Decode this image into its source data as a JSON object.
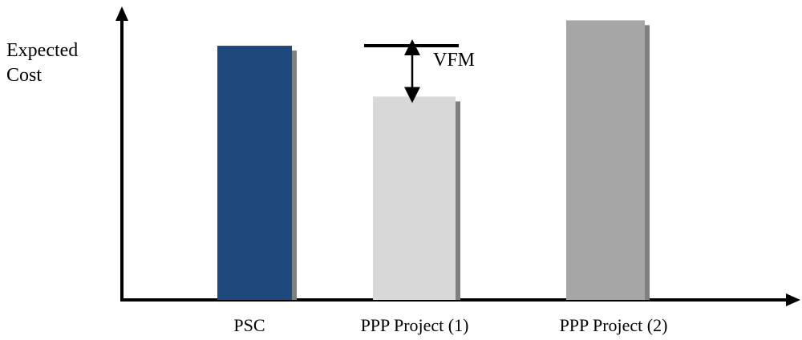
{
  "colors": {
    "axis": "#000000",
    "shadow": "#808080",
    "text": "#000000"
  },
  "icons": {
    "arrow": "double-headed-vertical-arrow"
  },
  "chart_data": {
    "type": "bar",
    "title": "",
    "ylabel_lines": [
      "Expected",
      "Cost"
    ],
    "xlabel": "",
    "grid": false,
    "ticks": false,
    "categories": [
      "PSC",
      "PPP Project (1)",
      "PPP Project (2)"
    ],
    "values": [
      100,
      80,
      110
    ],
    "ylim": [
      0,
      118
    ],
    "bar_colors": [
      "#1f497d",
      "#d8d8d8",
      "#a6a6a6"
    ],
    "annotation": {
      "label": "VFM",
      "reference_value": 100,
      "bar_value": 80,
      "category": "PPP Project (1)",
      "meaning": "difference between PSC and PPP Project (1)"
    }
  }
}
